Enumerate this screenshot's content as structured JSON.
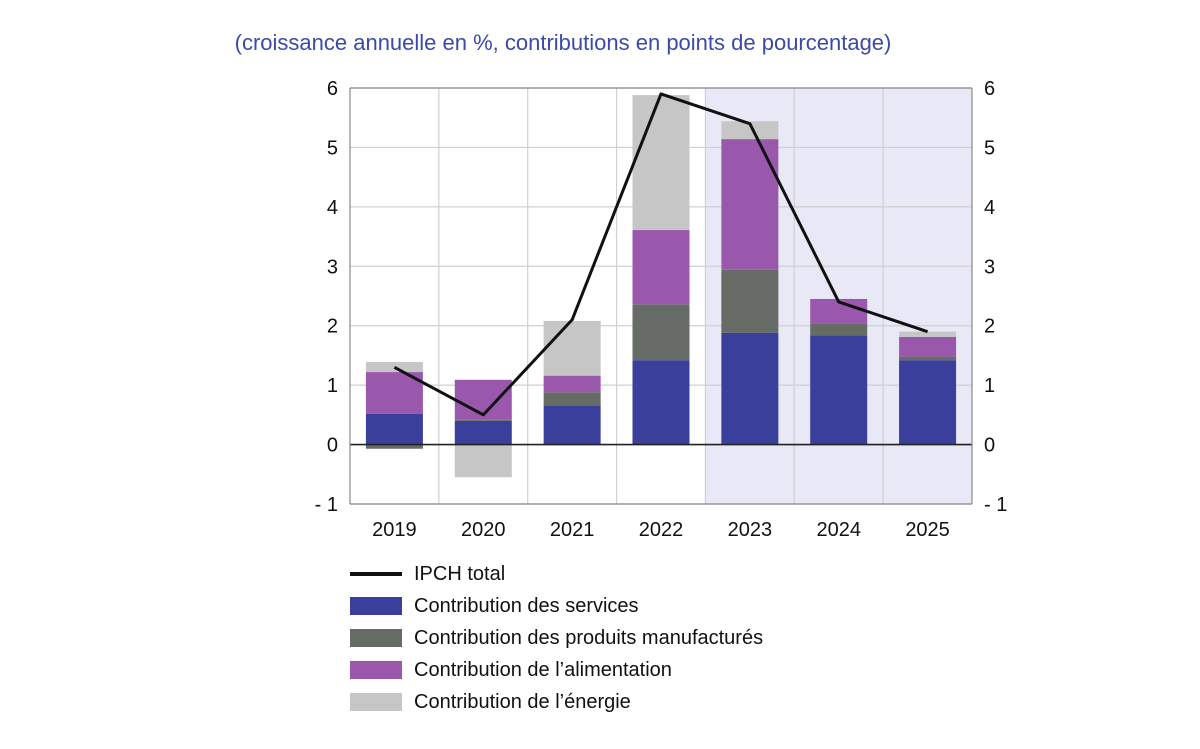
{
  "subtitle": "(croissance annuelle en %, contributions en points de pourcentage)",
  "chart_data": {
    "type": "bar",
    "stacked": true,
    "categories": [
      "2019",
      "2020",
      "2021",
      "2022",
      "2023",
      "2024",
      "2025"
    ],
    "projection_shaded_categories": [
      "2023",
      "2024",
      "2025"
    ],
    "ylim": [
      -1,
      6
    ],
    "yticks": [
      "- 1",
      "0",
      "1",
      "2",
      "3",
      "4",
      "5",
      "6"
    ],
    "ytick_values": [
      -1,
      0,
      1,
      2,
      3,
      4,
      5,
      6
    ],
    "grid": true,
    "legend_position": "bottom",
    "series": [
      {
        "name": "Contribution des services",
        "color": "#3a3f9c",
        "values": [
          0.52,
          0.4,
          0.66,
          1.42,
          1.88,
          1.84,
          1.42
        ]
      },
      {
        "name": "Contribution des produits manufacturés",
        "color": "#666b66",
        "values": [
          -0.07,
          0.02,
          0.22,
          0.94,
          1.06,
          0.2,
          0.06
        ]
      },
      {
        "name": "Contribution de l’alimentation",
        "color": "#9a58ad",
        "values": [
          0.7,
          0.67,
          0.28,
          1.25,
          2.2,
          0.41,
          0.33
        ]
      },
      {
        "name": "Contribution de l’énergie",
        "color": "#c6c6c6",
        "values": [
          0.17,
          -0.55,
          0.92,
          2.27,
          0.3,
          0.0,
          0.09
        ]
      }
    ],
    "line": {
      "name": "IPCH total",
      "color": "#111111",
      "values": [
        1.3,
        0.5,
        2.1,
        5.9,
        5.4,
        2.4,
        1.9
      ]
    }
  },
  "colors": {
    "projection_band": "#e8e8f6",
    "subtitle": "#3b4aa8",
    "grid": "#d0d0d0"
  }
}
